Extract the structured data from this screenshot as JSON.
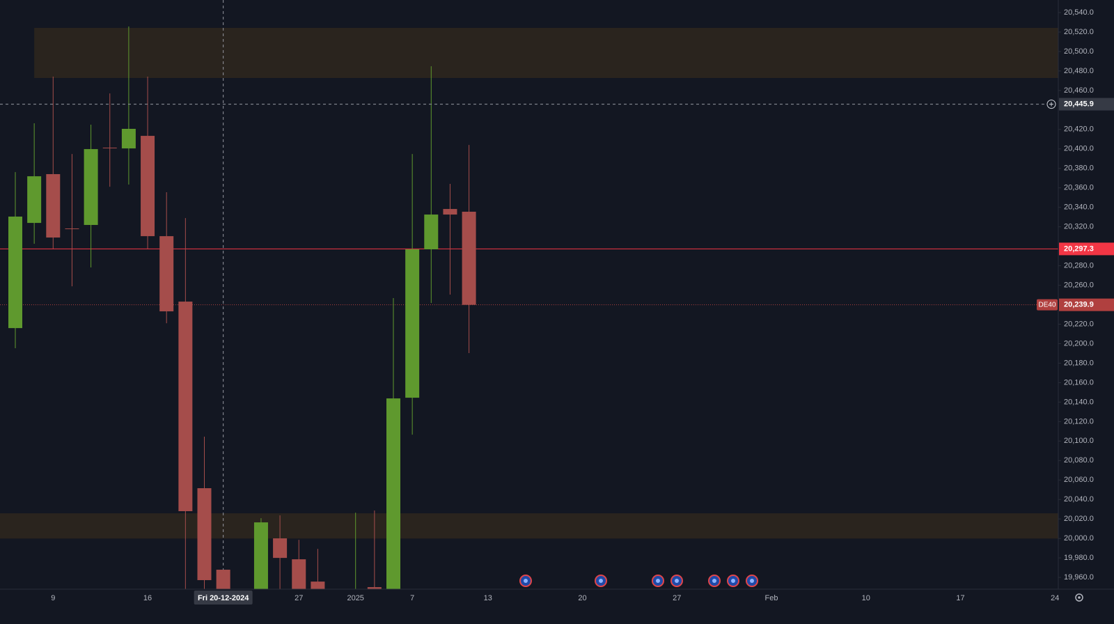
{
  "chart_data": {
    "type": "candlestick",
    "categories": [
      null,
      null,
      "9",
      null,
      null,
      null,
      null,
      "16",
      null,
      null,
      null,
      null,
      null,
      null,
      null,
      "27",
      null,
      null,
      "2025",
      null,
      null,
      "7",
      null,
      null,
      null,
      "13",
      null,
      null,
      null,
      null,
      "20",
      null,
      null,
      null,
      null,
      "27",
      null,
      null,
      null,
      null,
      "Feb",
      null,
      null,
      null,
      null,
      "10",
      null,
      null,
      null,
      null,
      "17",
      null,
      null,
      null,
      null,
      "24"
    ],
    "open": [
      20216.0,
      20324.0,
      20374.1,
      20318.3,
      20321.9,
      20401.3,
      20400.5,
      20413.4,
      20310.4,
      20243.2,
      20051.6,
      19967.9,
      null,
      19940,
      20000.1,
      19978.6,
      19955.7,
      null,
      19930,
      19950,
      19945,
      20144.5,
      20296.9,
      20338.3,
      20335.5,
      null,
      null,
      null,
      null,
      null,
      null,
      null,
      null,
      null,
      null,
      null,
      null,
      null,
      null,
      null,
      null,
      null,
      null,
      null,
      null,
      null,
      null,
      null,
      null,
      null,
      null,
      null,
      null,
      null,
      null,
      null
    ],
    "high": [
      20376.2,
      20426.3,
      20474.2,
      20394.8,
      20424.9,
      20457.0,
      20525.7,
      20474.2,
      20355.5,
      20329.0,
      20104.5,
      19967.9,
      null,
      20020.8,
      20023.7,
      19998.6,
      19989.3,
      null,
      20026.5,
      20028.7,
      20246.8,
      20394.8,
      20484.9,
      20364.1,
      20404.1,
      null,
      null,
      null,
      null,
      null,
      null,
      null,
      null,
      null,
      null,
      null,
      null,
      null,
      null,
      null,
      null,
      null,
      null,
      null,
      null,
      null,
      null,
      null,
      null,
      null,
      null,
      null,
      null,
      null,
      null,
      null
    ],
    "low": [
      20195.3,
      20302.6,
      20297.6,
      20258.9,
      20278.3,
      20361.2,
      20363.4,
      20297.6,
      20221.0,
      19940,
      19940,
      19925,
      null,
      19930,
      19940,
      19930,
      19935,
      null,
      19920,
      19940,
      19935,
      20106.6,
      20241.8,
      20250.4,
      20190.3,
      null,
      null,
      null,
      null,
      null,
      null,
      null,
      null,
      null,
      null,
      null,
      null,
      null,
      null,
      null,
      null,
      null,
      null,
      null,
      null,
      null,
      null,
      null,
      null,
      null,
      null,
      null,
      null,
      null,
      null,
      null
    ],
    "close": [
      20330.5,
      20371.9,
      20309.0,
      20317.6,
      20399.8,
      20400.8,
      20420.6,
      20310.4,
      20233.2,
      20028.0,
      19957.2,
      19935,
      null,
      20016.5,
      19980.0,
      19940,
      19945,
      null,
      19935,
      19947,
      20143.8,
      20296.9,
      20332.6,
      20332.6,
      20239.9,
      null,
      null,
      null,
      null,
      null,
      null,
      null,
      null,
      null,
      null,
      null,
      null,
      null,
      null,
      null,
      null,
      null,
      null,
      null,
      null,
      null,
      null,
      null,
      null,
      null,
      null,
      null,
      null,
      null,
      null,
      null
    ],
    "up_color": "#5f992e",
    "down_color": "#a54d4b",
    "ylim": [
      19947.9,
      20552.9
    ],
    "yticks": [
      {
        "value": 19960,
        "label": "19,960.0"
      },
      {
        "value": 19980,
        "label": "19,980.0"
      },
      {
        "value": 20000,
        "label": "20,000.0"
      },
      {
        "value": 20020,
        "label": "20,020.0"
      },
      {
        "value": 20040,
        "label": "20,040.0"
      },
      {
        "value": 20060,
        "label": "20,060.0"
      },
      {
        "value": 20080,
        "label": "20,080.0"
      },
      {
        "value": 20100,
        "label": "20,100.0"
      },
      {
        "value": 20120,
        "label": "20,120.0"
      },
      {
        "value": 20140,
        "label": "20,140.0"
      },
      {
        "value": 20160,
        "label": "20,160.0"
      },
      {
        "value": 20180,
        "label": "20,180.0"
      },
      {
        "value": 20200,
        "label": "20,200.0"
      },
      {
        "value": 20220,
        "label": "20,220.0"
      },
      {
        "value": 20260,
        "label": "20,260.0"
      },
      {
        "value": 20280,
        "label": "20,280.0"
      },
      {
        "value": 20320,
        "label": "20,320.0"
      },
      {
        "value": 20340,
        "label": "20,340.0"
      },
      {
        "value": 20360,
        "label": "20,360.0"
      },
      {
        "value": 20380,
        "label": "20,380.0"
      },
      {
        "value": 20400,
        "label": "20,400.0"
      },
      {
        "value": 20420,
        "label": "20,420.0"
      },
      {
        "value": 20460,
        "label": "20,460.0"
      },
      {
        "value": 20480,
        "label": "20,480.0"
      },
      {
        "value": 20500,
        "label": "20,500.0"
      },
      {
        "value": 20520,
        "label": "20,520.0"
      },
      {
        "value": 20540,
        "label": "20,540.0"
      }
    ],
    "zones": [
      {
        "top": 20524.3,
        "bottom": 20472.8
      },
      {
        "top": 20025.8,
        "bottom": 19999.9
      }
    ],
    "zone_color": "#2a241e",
    "current_price": {
      "value": 20297.3,
      "label": "20,297.3",
      "color": "#f23645"
    },
    "symbol_price": {
      "name": "DE40",
      "value": 20239.9,
      "label": "20,239.9",
      "color": "#b0403f"
    },
    "crosshair": {
      "value": 20445.9,
      "label": "20,445.9",
      "date": "Fri 20-12-2024"
    }
  }
}
